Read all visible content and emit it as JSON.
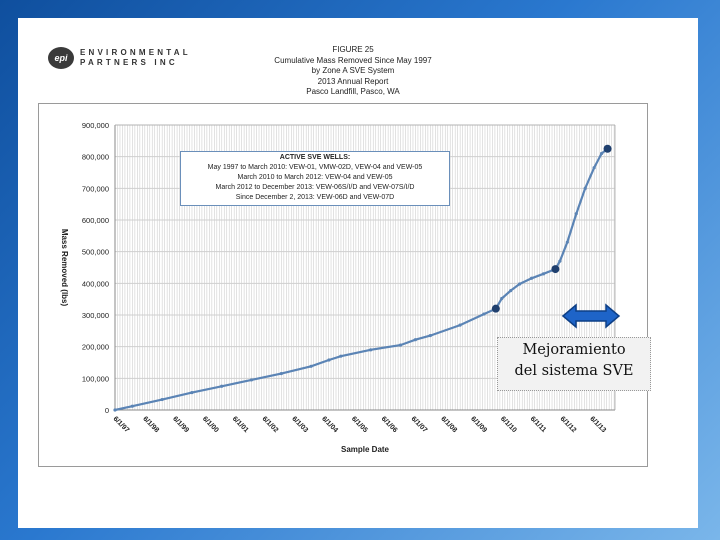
{
  "company": {
    "logo_mark": "epi",
    "line1": "ENVIRONMENTAL",
    "line2": "PARTNERS INC"
  },
  "figure_title": {
    "line1": "FIGURE 25",
    "line2": "Cumulative Mass Removed Since May 1997",
    "line3": "by Zone A SVE System",
    "line4": "2013 Annual Report",
    "line5": "Pasco Landfill, Pasco, WA"
  },
  "legend": {
    "header": "ACTIVE SVE WELLS:",
    "line1": "May 1997 to March 2010: VEW-01, VMW-02D, VEW-04 and VEW-05",
    "line2": "March 2010 to March 2012: VEW-04 and VEW-05",
    "line3": "March 2012 to December 2013: VEW-06S/I/D and VEW-07S/I/D",
    "line4": "Since December 2, 2013: VEW-06D and VEW-07D"
  },
  "callout": {
    "line1": "Mejoramiento",
    "line2": "del sistema SVE"
  },
  "colors": {
    "series": "#5b84b5",
    "marker": "#1f3f6e",
    "arrow": "#1e64c8",
    "grid": "#cfcfcf"
  },
  "chart_data": {
    "type": "line",
    "xlabel": "Sample Date",
    "ylabel": "Mass Removed (lbs)",
    "ylim": [
      0,
      900000
    ],
    "yticks": [
      0,
      100000,
      200000,
      300000,
      400000,
      500000,
      600000,
      700000,
      800000,
      900000
    ],
    "ytick_labels": [
      "0",
      "100,000",
      "200,000",
      "300,000",
      "400,000",
      "500,000",
      "600,000",
      "700,000",
      "800,000",
      "900,000"
    ],
    "xlim": [
      1997.42,
      2014.2
    ],
    "xtick_labels": [
      "6/1/97",
      "6/1/98",
      "6/1/99",
      "6/1/00",
      "6/1/01",
      "6/1/02",
      "6/1/03",
      "6/1/04",
      "6/1/05",
      "6/1/06",
      "6/1/07",
      "6/1/08",
      "6/1/09",
      "6/1/10",
      "6/1/11",
      "6/1/12",
      "6/1/13"
    ],
    "grid": true,
    "series": [
      {
        "points": [
          [
            1997.42,
            0
          ],
          [
            1998.0,
            12000
          ],
          [
            1999.0,
            33000
          ],
          [
            2000.0,
            55000
          ],
          [
            2001.0,
            75000
          ],
          [
            2002.0,
            95000
          ],
          [
            2003.0,
            115000
          ],
          [
            2004.0,
            138000
          ],
          [
            2004.6,
            158000
          ],
          [
            2005.0,
            170000
          ],
          [
            2006.0,
            190000
          ],
          [
            2007.0,
            205000
          ],
          [
            2007.5,
            222000
          ],
          [
            2008.0,
            235000
          ],
          [
            2009.0,
            268000
          ],
          [
            2009.8,
            303000
          ],
          [
            2010.2,
            320000
          ],
          [
            2010.4,
            352000
          ],
          [
            2010.7,
            377000
          ],
          [
            2011.0,
            398000
          ],
          [
            2011.4,
            416000
          ],
          [
            2011.8,
            430000
          ],
          [
            2012.2,
            445000
          ],
          [
            2012.35,
            470000
          ],
          [
            2012.6,
            530000
          ],
          [
            2012.9,
            620000
          ],
          [
            2013.2,
            700000
          ],
          [
            2013.5,
            765000
          ],
          [
            2013.75,
            810000
          ],
          [
            2013.95,
            825000
          ]
        ],
        "highlight_points": [
          [
            2010.2,
            320000
          ],
          [
            2012.2,
            445000
          ],
          [
            2013.95,
            825000
          ]
        ]
      }
    ]
  }
}
